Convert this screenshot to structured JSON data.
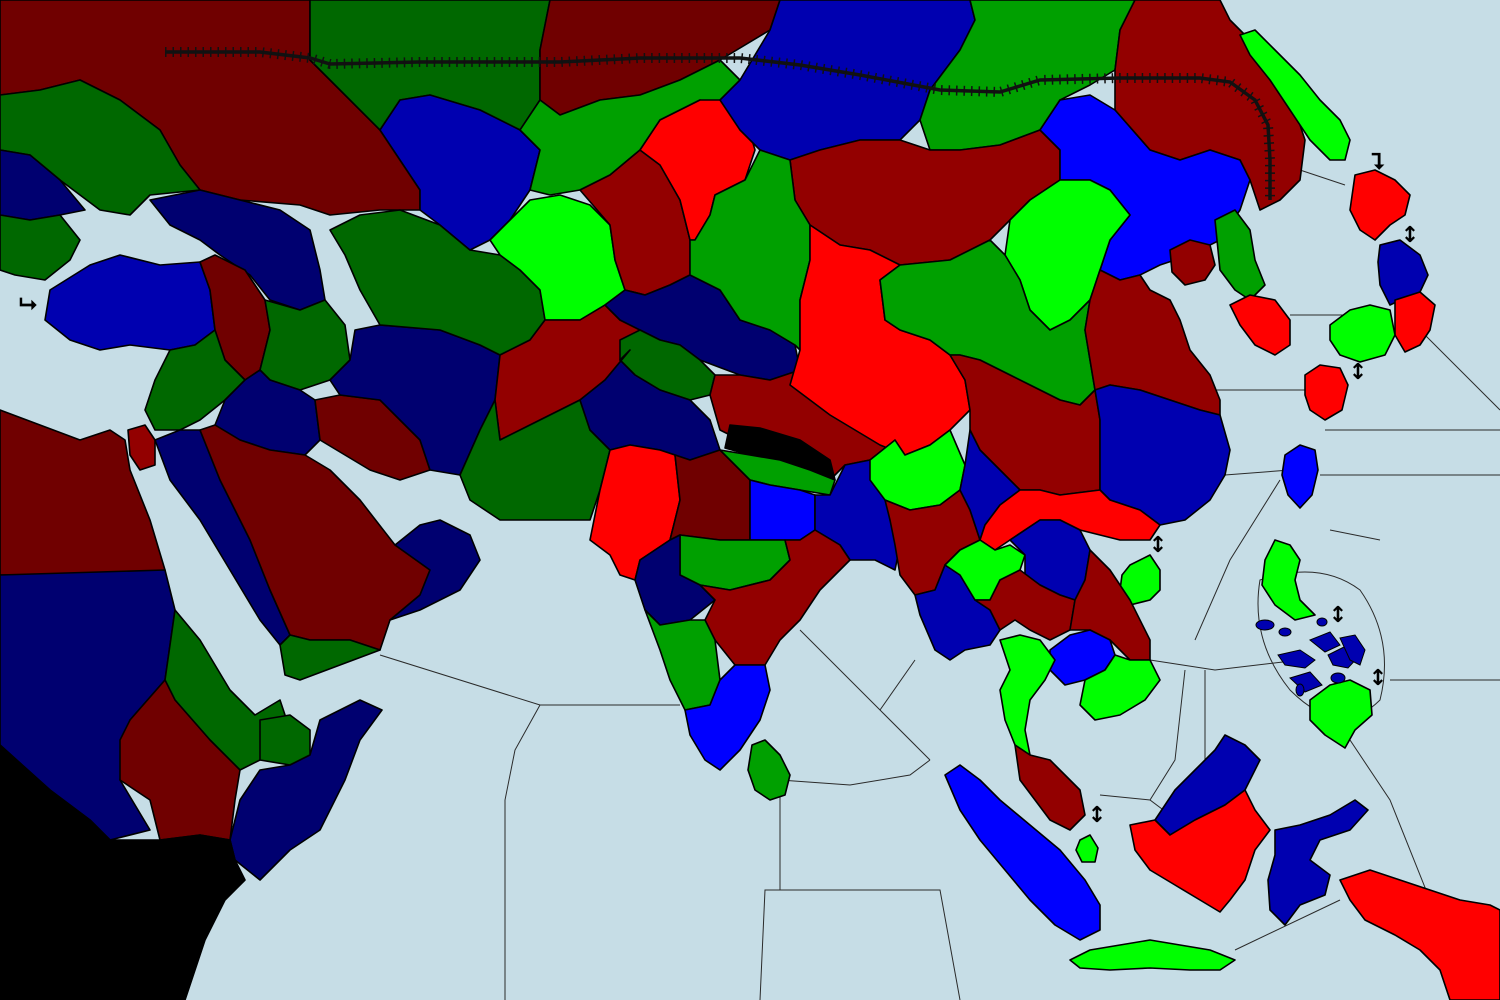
{
  "map": {
    "colors": {
      "sea": "#c6dde6",
      "red": "#ff0000",
      "dark_red": "#930000",
      "maroon": "#700000",
      "blue": "#0000ff",
      "medium_blue": "#0000b0",
      "navy": "#000070",
      "green": "#00a000",
      "dark_green": "#006800",
      "light_green": "#00ff00",
      "impassable": "#000000"
    },
    "sea_connection_glyphs": {
      "vertical": "↕",
      "turn_down_right": "⮧",
      "turn_right": "⮡"
    },
    "features": [
      "trans-siberian-railway",
      "sea-zone-borders",
      "impassable-africa-block"
    ]
  }
}
